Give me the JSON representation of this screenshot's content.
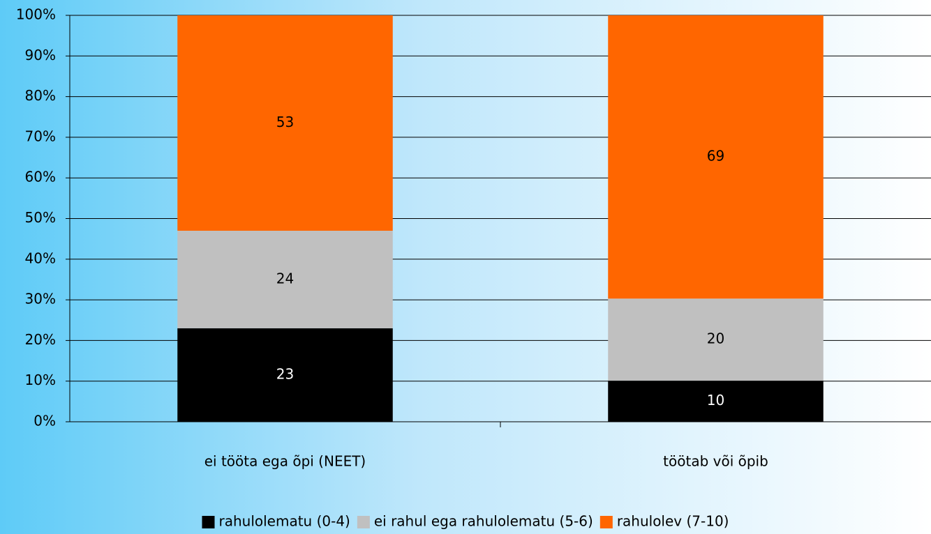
{
  "chart_data": {
    "type": "bar",
    "stacking": "percent",
    "categories": [
      "ei tööta ega õpi (NEET)",
      "töötab või õpib"
    ],
    "series": [
      {
        "name": "rahulolematu (0-4)",
        "color": "#000000",
        "values": [
          23,
          10
        ]
      },
      {
        "name": "ei rahul ega rahulolematu (5-6)",
        "color": "#c0c0c0",
        "values": [
          24,
          20
        ]
      },
      {
        "name": "rahulolev (7-10)",
        "color": "#ff6600",
        "values": [
          53,
          69
        ]
      }
    ],
    "ylim": [
      0,
      100
    ],
    "yticks": [
      {
        "value": 0,
        "label": "0%"
      },
      {
        "value": 10,
        "label": "10%"
      },
      {
        "value": 20,
        "label": "20%"
      },
      {
        "value": 30,
        "label": "30%"
      },
      {
        "value": 40,
        "label": "40%"
      },
      {
        "value": 50,
        "label": "50%"
      },
      {
        "value": 60,
        "label": "60%"
      },
      {
        "value": 70,
        "label": "70%"
      },
      {
        "value": 80,
        "label": "80%"
      },
      {
        "value": 90,
        "label": "90%"
      },
      {
        "value": 100,
        "label": "100%"
      }
    ],
    "grid": true,
    "legend": "bottom"
  }
}
